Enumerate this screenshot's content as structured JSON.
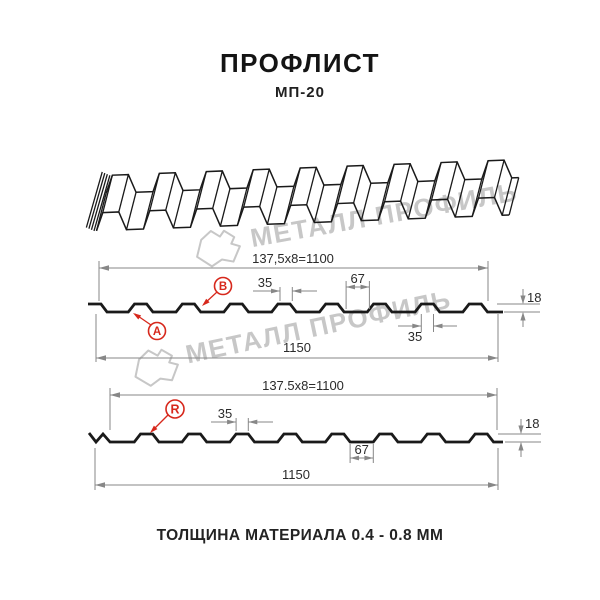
{
  "header": {
    "title": "ПРОФЛИСТ",
    "subtitle": "МП-20"
  },
  "watermark": {
    "brand": "МЕТАЛЛ ПРОФИЛЬ"
  },
  "diagram": {
    "section_top": {
      "formula": "137,5x8=1100",
      "crest_width": "35",
      "valley_width": "67",
      "profile_height": "18",
      "crest_width_bottom": "35",
      "overall_width": "1150",
      "marker_a": "A",
      "marker_b": "B"
    },
    "section_bottom": {
      "formula": "137.5x8=1100",
      "crest_width": "35",
      "valley_width": "67",
      "profile_height": "18",
      "overall_width": "1150",
      "marker_r": "R"
    }
  },
  "footer": {
    "note": "ТОЛЩИНА МАТЕРИАЛА 0.4 - 0.8 ММ"
  },
  "colors": {
    "background": "#ffffff",
    "line": "#1a1a1a",
    "dim": "#878787",
    "dimtext": "#2b2b2b",
    "accent": "#d7281c",
    "wm": "#c7c7c7"
  }
}
